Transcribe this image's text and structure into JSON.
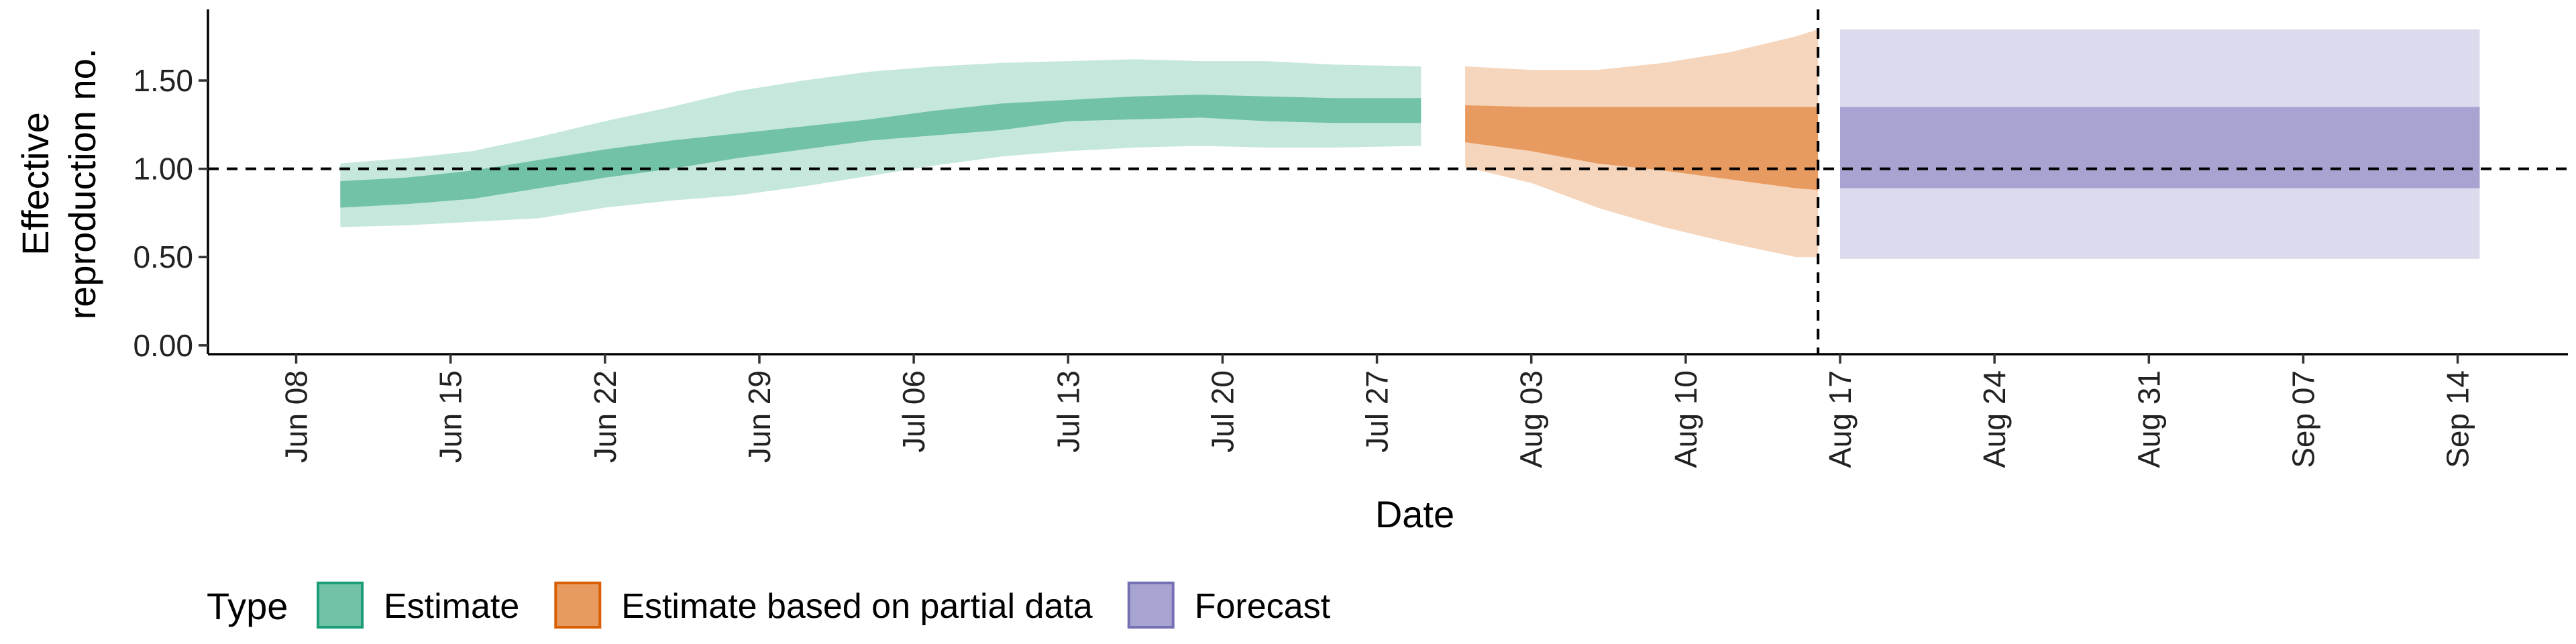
{
  "chart_data": {
    "type": "area",
    "xlabel": "Date",
    "ylabel_lines": [
      "Effective",
      "reproduction no."
    ],
    "ylim": [
      -0.05,
      1.88
    ],
    "yticks": [
      0.0,
      0.5,
      1.0,
      1.5
    ],
    "ytick_labels": [
      "0.00",
      "0.50",
      "1.00",
      "1.50"
    ],
    "xlim": [
      "2020-06-04",
      "2020-09-19"
    ],
    "xticks": [
      "2020-06-08",
      "2020-06-15",
      "2020-06-22",
      "2020-06-29",
      "2020-07-06",
      "2020-07-13",
      "2020-07-20",
      "2020-07-27",
      "2020-08-03",
      "2020-08-10",
      "2020-08-17",
      "2020-08-24",
      "2020-08-31",
      "2020-09-07",
      "2020-09-14"
    ],
    "xtick_labels": [
      "Jun 08",
      "Jun 15",
      "Jun 22",
      "Jun 29",
      "Jul 06",
      "Jul 13",
      "Jul 20",
      "Jul 27",
      "Aug 03",
      "Aug 10",
      "Aug 17",
      "Aug 24",
      "Aug 31",
      "Sep 07",
      "Sep 14"
    ],
    "hline": 1.0,
    "vline": "2020-08-16",
    "legend": {
      "title": "Type",
      "position": "bottom-left",
      "entries": [
        {
          "label": "Estimate",
          "fill": "#71c2a6",
          "stroke": "#1b9e77"
        },
        {
          "label": "Estimate based on partial data",
          "fill": "#e89b60",
          "stroke": "#d95f02"
        },
        {
          "label": "Forecast",
          "fill": "#a8a4d2",
          "stroke": "#7570b3"
        }
      ]
    },
    "series": [
      {
        "name": "Estimate",
        "fill_outer": "#c5e7dc",
        "fill_inner": "#71c2a6",
        "dates": [
          "2020-06-10",
          "2020-06-13",
          "2020-06-16",
          "2020-06-19",
          "2020-06-22",
          "2020-06-25",
          "2020-06-28",
          "2020-07-01",
          "2020-07-04",
          "2020-07-07",
          "2020-07-10",
          "2020-07-13",
          "2020-07-16",
          "2020-07-19",
          "2020-07-22",
          "2020-07-25",
          "2020-07-29"
        ],
        "lower90": [
          0.67,
          0.68,
          0.7,
          0.72,
          0.78,
          0.82,
          0.85,
          0.9,
          0.96,
          1.02,
          1.07,
          1.1,
          1.12,
          1.13,
          1.12,
          1.12,
          1.13
        ],
        "lower50": [
          0.78,
          0.8,
          0.83,
          0.89,
          0.95,
          1.0,
          1.06,
          1.11,
          1.16,
          1.19,
          1.22,
          1.27,
          1.28,
          1.29,
          1.27,
          1.26,
          1.26
        ],
        "upper50": [
          0.93,
          0.95,
          0.99,
          1.05,
          1.11,
          1.16,
          1.2,
          1.24,
          1.28,
          1.33,
          1.37,
          1.39,
          1.41,
          1.42,
          1.41,
          1.4,
          1.4
        ],
        "upper90": [
          1.03,
          1.06,
          1.1,
          1.18,
          1.27,
          1.35,
          1.44,
          1.5,
          1.55,
          1.58,
          1.6,
          1.61,
          1.62,
          1.61,
          1.61,
          1.59,
          1.58
        ]
      },
      {
        "name": "Estimate based on partial data",
        "fill_outer": "#f5d5bc",
        "fill_inner": "#e89b60",
        "dates": [
          "2020-07-31",
          "2020-08-03",
          "2020-08-06",
          "2020-08-09",
          "2020-08-12",
          "2020-08-15",
          "2020-08-16"
        ],
        "lower90": [
          1.01,
          0.92,
          0.78,
          0.67,
          0.58,
          0.5,
          0.5
        ],
        "lower50": [
          1.15,
          1.1,
          1.03,
          0.99,
          0.94,
          0.89,
          0.88
        ],
        "upper50": [
          1.36,
          1.35,
          1.35,
          1.35,
          1.35,
          1.35,
          1.35
        ],
        "upper90": [
          1.58,
          1.56,
          1.56,
          1.6,
          1.66,
          1.75,
          1.79
        ]
      },
      {
        "name": "Forecast",
        "fill_outer": "#dcdbed",
        "fill_inner": "#a8a4d2",
        "dates": [
          "2020-08-17",
          "2020-09-15"
        ],
        "lower90": [
          0.49,
          0.49
        ],
        "lower50": [
          0.89,
          0.89
        ],
        "upper50": [
          1.35,
          1.35
        ],
        "upper90": [
          1.79,
          1.79
        ]
      }
    ]
  }
}
